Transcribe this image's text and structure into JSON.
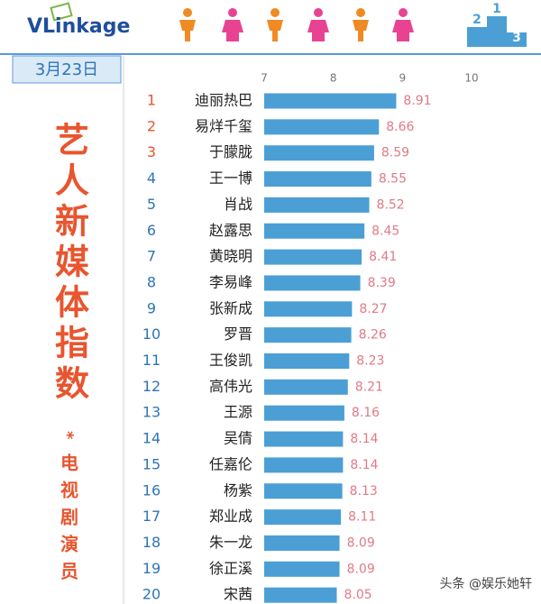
{
  "logo": "VLinkage",
  "date": "3月23日",
  "side_title": "艺人新媒体指数",
  "side_mark": "*",
  "side_subtitle": "电视剧演员",
  "podium": [
    "2",
    "1",
    "3"
  ],
  "watermark": "头条 @娱乐她轩",
  "chart_data": {
    "type": "barh",
    "ranks": [
      1,
      2,
      3,
      4,
      5,
      6,
      7,
      8,
      9,
      10,
      11,
      12,
      13,
      14,
      15,
      16,
      17,
      18,
      19,
      20
    ],
    "categories": [
      "迪丽热巴",
      "易烊千玺",
      "于朦胧",
      "王一博",
      "肖战",
      "赵露思",
      "黄晓明",
      "李易峰",
      "张新成",
      "罗晋",
      "王俊凯",
      "高伟光",
      "王源",
      "吴倩",
      "任嘉伦",
      "杨紫",
      "郑业成",
      "朱一龙",
      "徐正溪",
      "宋茜"
    ],
    "values": [
      8.91,
      8.66,
      8.59,
      8.55,
      8.52,
      8.45,
      8.41,
      8.39,
      8.27,
      8.26,
      8.23,
      8.21,
      8.16,
      8.14,
      8.14,
      8.13,
      8.11,
      8.09,
      8.09,
      8.05
    ],
    "color": "#4b9fd5",
    "label_color": "#e07a86",
    "xlim": [
      7,
      10
    ],
    "xticks": [
      7,
      8,
      9,
      10
    ]
  }
}
